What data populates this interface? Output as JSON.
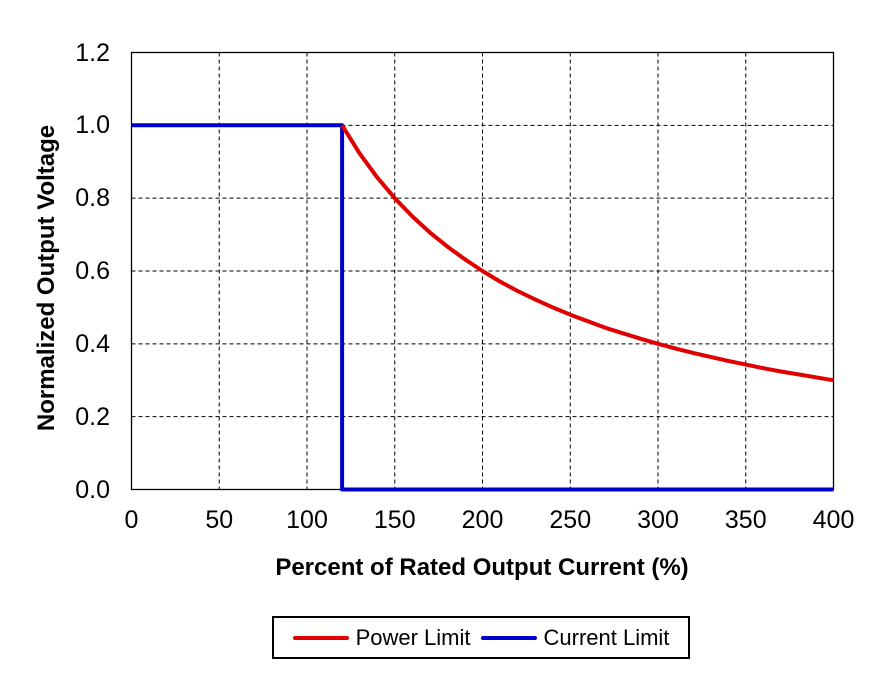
{
  "chart_data": {
    "type": "line",
    "title": "",
    "xlabel": "Percent of Rated Output Current (%)",
    "ylabel": "Normalized Output Voltage",
    "xlim": [
      0,
      400
    ],
    "ylim": [
      0,
      1.2
    ],
    "xticks": [
      0,
      50,
      100,
      150,
      200,
      250,
      300,
      350,
      400
    ],
    "ytick_labels": [
      "0.0",
      "0.2",
      "0.4",
      "0.6",
      "0.8",
      "1.0",
      "1.2"
    ],
    "ytick_values": [
      0,
      0.2,
      0.4,
      0.6,
      0.8,
      1.0,
      1.2
    ],
    "grid": "dashed, both axes, black",
    "legend_position": "bottom-center, boxed",
    "series": [
      {
        "name": "Power Limit",
        "color": "#e00000",
        "points": [
          [
            120,
            1.0
          ],
          [
            130,
            0.923
          ],
          [
            140,
            0.857
          ],
          [
            150,
            0.8
          ],
          [
            160,
            0.75
          ],
          [
            170,
            0.706
          ],
          [
            180,
            0.667
          ],
          [
            190,
            0.632
          ],
          [
            200,
            0.6
          ],
          [
            210,
            0.571
          ],
          [
            220,
            0.545
          ],
          [
            230,
            0.522
          ],
          [
            240,
            0.5
          ],
          [
            250,
            0.48
          ],
          [
            260,
            0.462
          ],
          [
            270,
            0.444
          ],
          [
            280,
            0.429
          ],
          [
            290,
            0.414
          ],
          [
            300,
            0.4
          ],
          [
            310,
            0.387
          ],
          [
            320,
            0.375
          ],
          [
            330,
            0.364
          ],
          [
            340,
            0.353
          ],
          [
            350,
            0.343
          ],
          [
            360,
            0.333
          ],
          [
            370,
            0.324
          ],
          [
            380,
            0.316
          ],
          [
            390,
            0.308
          ],
          [
            400,
            0.3
          ]
        ]
      },
      {
        "name": "Current Limit",
        "color": "#0000cc",
        "points": [
          [
            0,
            1.0
          ],
          [
            120,
            1.0
          ],
          [
            120,
            0
          ],
          [
            400,
            0
          ]
        ]
      }
    ]
  },
  "legend": {
    "items": [
      {
        "label": "Power Limit",
        "color": "#e00000"
      },
      {
        "label": "Current Limit",
        "color": "#0000cc"
      }
    ]
  }
}
